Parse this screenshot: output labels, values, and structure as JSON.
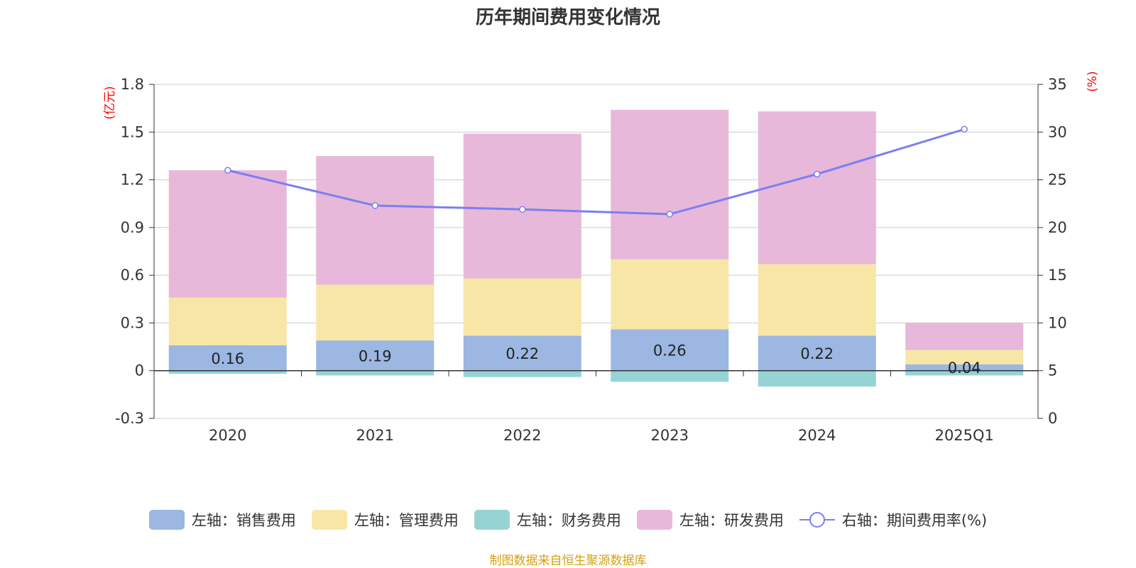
{
  "title": "历年期间费用变化情况",
  "source": "制图数据来自恒生聚源数据库",
  "colors": {
    "sales": "#9bb7e2",
    "admin": "#f8e6a6",
    "finance": "#96d4d4",
    "rd": "#e7b8d9",
    "rate": "#7b7ff0",
    "axis_unit": "#ff0000"
  },
  "chart_data": {
    "type": "bar",
    "stacked": true,
    "categories": [
      "2020",
      "2021",
      "2022",
      "2023",
      "2024",
      "2025Q1"
    ],
    "series": [
      {
        "name": "左轴：销售费用",
        "key": "sales",
        "axis": "left",
        "values": [
          0.16,
          0.19,
          0.22,
          0.26,
          0.22,
          0.04
        ],
        "data_labels": [
          "0.16",
          "0.19",
          "0.22",
          "0.26",
          "0.22",
          "0.04"
        ]
      },
      {
        "name": "左轴：管理费用",
        "key": "admin",
        "axis": "left",
        "values": [
          0.3,
          0.35,
          0.36,
          0.44,
          0.45,
          0.09
        ]
      },
      {
        "name": "左轴：财务费用",
        "key": "finance",
        "axis": "left",
        "values": [
          -0.02,
          -0.03,
          -0.04,
          -0.07,
          -0.1,
          -0.03
        ]
      },
      {
        "name": "左轴：研发费用",
        "key": "rd",
        "axis": "left",
        "values": [
          0.8,
          0.81,
          0.91,
          0.94,
          0.96,
          0.17
        ]
      },
      {
        "name": "右轴：期间费用率(%)",
        "key": "rate",
        "axis": "right",
        "type": "line",
        "values": [
          26.0,
          22.3,
          21.9,
          21.4,
          25.6,
          30.3
        ]
      }
    ],
    "left_axis": {
      "unit": "(亿元)",
      "range": [
        -0.3,
        1.8
      ],
      "ticks": [
        "1.8",
        "1.5",
        "1.2",
        "0.9",
        "0.6",
        "0.3",
        "0",
        "-0.3"
      ]
    },
    "right_axis": {
      "unit": "(%)",
      "range": [
        0,
        35
      ],
      "ticks": [
        "35",
        "30",
        "25",
        "20",
        "15",
        "10",
        "5",
        "0"
      ]
    },
    "grid": true,
    "legend": "bottom"
  }
}
